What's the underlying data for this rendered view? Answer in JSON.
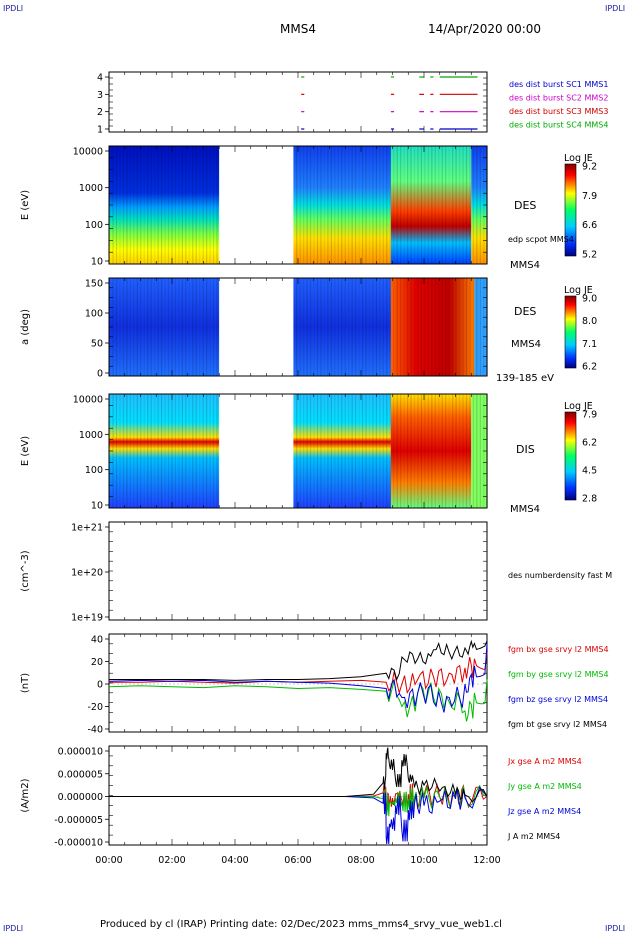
{
  "corners": {
    "tl": "IPDLI",
    "tr": "IPDLI",
    "bl": "IPDLI",
    "br": "IPDLI"
  },
  "header": {
    "spacecraft": "MMS4",
    "date": "14/Apr/2020 00:00"
  },
  "footer": {
    "text": "Produced by cl (IRAP)   Printing date: 02/Dec/2023   mms_mms4_srvy_vue_web1.cl"
  },
  "colors": {
    "mms1": "#0000cc",
    "mms2": "#cc00cc",
    "mms3": "#cc0000",
    "mms4": "#00aa00",
    "bx": "#dd0000",
    "by": "#00bb00",
    "bz": "#0000dd",
    "bt": "#000000"
  },
  "chart_data": [
    {
      "type": "scatter",
      "panel": "burst-availability",
      "y_ticks": [
        "4",
        "3",
        "2",
        "1"
      ],
      "legend": [
        "des dist burst SC1 MMS1",
        "des dist burst SC2 MMS2",
        "des dist burst SC3 MMS3",
        "des dist burst SC4 MMS4"
      ],
      "segments": [
        [
          6.1,
          6.2
        ],
        [
          8.95,
          9.05
        ],
        [
          9.85,
          10.0
        ],
        [
          10.2,
          10.3
        ],
        [
          10.5,
          11.7
        ]
      ],
      "xlim_hours": [
        0,
        12
      ]
    },
    {
      "type": "heatmap",
      "panel": "des-energy",
      "ylabel": "E (eV)",
      "y_ticks": [
        "10000",
        "1000",
        "100",
        "10"
      ],
      "right_labels": [
        "DES",
        "edp scpot MMS4",
        "MMS4"
      ],
      "colorbar": {
        "title": "Log JE",
        "ticks": [
          "9.2",
          "7.9",
          "6.6",
          "5.2"
        ]
      },
      "data_gaps_hours": [
        [
          3.5,
          5.85
        ]
      ],
      "xlim_hours": [
        0,
        12
      ]
    },
    {
      "type": "heatmap",
      "panel": "des-pitch-angle",
      "ylabel": "a (deg)",
      "y_ticks": [
        "150",
        "100",
        "50",
        "0"
      ],
      "right_labels": [
        "DES",
        "MMS4",
        "139-185 eV"
      ],
      "colorbar": {
        "title": "Log JE",
        "ticks": [
          "9.0",
          "8.0",
          "7.1",
          "6.2"
        ]
      },
      "data_gaps_hours": [
        [
          3.5,
          5.85
        ]
      ],
      "xlim_hours": [
        0,
        12
      ]
    },
    {
      "type": "heatmap",
      "panel": "dis-energy",
      "ylabel": "E (eV)",
      "y_ticks": [
        "10000",
        "1000",
        "100",
        "10"
      ],
      "right_labels": [
        "DIS",
        "MMS4"
      ],
      "colorbar": {
        "title": "Log JE",
        "ticks": [
          "7.9",
          "6.2",
          "4.5",
          "2.8"
        ]
      },
      "data_gaps_hours": [
        [
          3.5,
          5.85
        ]
      ],
      "xlim_hours": [
        0,
        12
      ]
    },
    {
      "type": "line",
      "panel": "density",
      "ylabel": "(cm^-3)",
      "y_ticks": [
        "1e+21",
        "1e+20",
        "1e+19"
      ],
      "legend": [
        "des numberdensity fast M"
      ],
      "xlim_hours": [
        0,
        12
      ]
    },
    {
      "type": "line",
      "panel": "magnetic-field",
      "ylabel": "(nT)",
      "y_ticks": [
        "40",
        "20",
        "0",
        "-20",
        "-40"
      ],
      "ylim": [
        -50,
        50
      ],
      "x_hours": [
        0,
        1,
        2,
        3,
        4,
        5,
        6,
        7,
        8,
        8.8,
        9.3,
        9.8,
        10.3,
        10.8,
        11.3,
        11.6,
        12
      ],
      "series": [
        {
          "name": "fgm bx gse srvy l2 MMS4",
          "values": [
            2,
            2,
            3,
            2,
            1,
            3,
            2,
            3,
            4,
            2,
            0,
            5,
            8,
            12,
            18,
            28,
            35
          ]
        },
        {
          "name": "fgm by gse srvy l2 MMS4",
          "values": [
            -3,
            -2,
            -3,
            -4,
            -2,
            -3,
            -5,
            -4,
            -6,
            -8,
            -25,
            -10,
            -15,
            -20,
            -30,
            -10,
            5
          ]
        },
        {
          "name": "fgm bz gse srvy l2 MMS4",
          "values": [
            3,
            4,
            3,
            4,
            2,
            3,
            2,
            1,
            -2,
            -5,
            -15,
            -10,
            -20,
            -15,
            0,
            20,
            45
          ]
        },
        {
          "name": "fgm bt gse srvy l2 MMS4",
          "values": [
            5,
            5,
            5,
            5,
            4,
            5,
            5,
            6,
            8,
            12,
            30,
            28,
            38,
            35,
            40,
            45,
            48
          ]
        }
      ],
      "xlim_hours": [
        0,
        12
      ]
    },
    {
      "type": "line",
      "panel": "current-density",
      "ylabel": "(A/m2)",
      "y_ticks": [
        "0.000010",
        "0.000005",
        "0.000000",
        "-0.000005",
        "-0.000010"
      ],
      "ylim": [
        -1e-05,
        1e-05
      ],
      "x_hours": [
        0,
        2,
        4,
        6,
        7.5,
        8.4,
        8.7,
        8.8,
        8.9,
        9.1,
        9.3,
        9.5,
        9.7,
        10.0,
        10.5,
        11.0,
        11.3,
        12
      ],
      "series": [
        {
          "name": "Jx gse A m2 MMS4",
          "values": [
            0,
            0,
            0,
            0,
            0,
            1e-07,
            8e-07,
            -1e-06,
            -1.2e-06,
            6e-07,
            -8e-07,
            5e-07,
            -4e-07,
            3e-07,
            -2e-07,
            2e-07,
            1e-07,
            0
          ]
        },
        {
          "name": "Jy gse A m2 MMS4",
          "values": [
            0,
            0,
            0,
            0,
            0,
            0,
            -5e-07,
            -2e-06,
            -1.5e-06,
            -4e-07,
            -1.2e-06,
            -5e-07,
            -3e-07,
            -4e-07,
            -2e-07,
            -1e-07,
            0,
            0
          ]
        },
        {
          "name": "Jz gse A m2 MMS4",
          "values": [
            0,
            0,
            0,
            0,
            0,
            -3e-07,
            -1.5e-06,
            -9e-06,
            -6e-06,
            -2e-06,
            -7.5e-06,
            -3e-06,
            -1.5e-06,
            -2e-06,
            -1e-06,
            -5e-07,
            -3e-07,
            0
          ]
        },
        {
          "name": "J A m2 MMS4",
          "values": [
            0,
            0,
            0,
            0,
            0,
            5e-07,
            3e-06,
            9.5e-06,
            7e-06,
            3.5e-06,
            8e-06,
            4e-06,
            2e-06,
            2.5e-06,
            1.2e-06,
            6e-07,
            3e-07,
            0
          ]
        }
      ],
      "xlim_hours": [
        0,
        12
      ],
      "x_ticks": [
        "00:00",
        "02:00",
        "04:00",
        "06:00",
        "08:00",
        "10:00",
        "12:00"
      ]
    }
  ]
}
